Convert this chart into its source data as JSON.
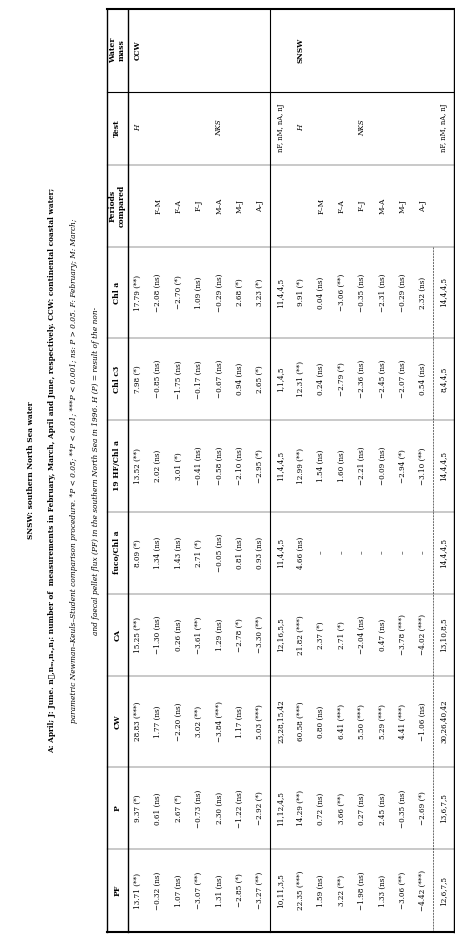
{
  "title_lines": [
    "and faecal pellet flux (PF) in the southern North Sea in 1996. H (P) = result of the non-",
    "parametric Newman–Keuls–Student comparison procedure. *P < 0.05; **P < 0.01; ***P < 0.001; ns: P > 0.05. F: February; M: March;",
    "A: April; J: June. n₟,nₘ,nₐ,nⱼ: number of  measurements in February, March, April and June, respectively. CCW: continental coastal water;",
    "SNSW: southern North Sea water"
  ],
  "col_headers": [
    "Water\nmass",
    "Test",
    "Periods\ncompared",
    "Chl a",
    "Chl c3",
    "19 HF/Chl a",
    "fuco/Chl a",
    "CA",
    "CW",
    "P",
    "PF"
  ],
  "rows": [
    [
      "CCW",
      "H",
      "",
      "17.79 (**)",
      "7.98 (*)",
      "13.52 (**)",
      "8.09 (*)",
      "15.25 (**)",
      "28.83 (***)",
      "9.37 (*)",
      "13.71 (**)"
    ],
    [
      "",
      "",
      "F–M",
      "−2.08 (ns)",
      "−0.85 (ns)",
      "2.02 (ns)",
      "1.34 (ns)",
      "−1.30 (ns)",
      "1.77 (ns)",
      "0.61 (ns)",
      "−0.32 (ns)"
    ],
    [
      "",
      "",
      "F–A",
      "−2.70 (*)",
      "−1.75 (ns)",
      "3.01 (*)",
      "1.43 (ns)",
      "0.26 (ns)",
      "−2.20 (ns)",
      "2.67 (*)",
      "1.07 (ns)"
    ],
    [
      "",
      "",
      "F–J",
      "1.09 (ns)",
      "−0.17 (ns)",
      "−0.41 (ns)",
      "2.71 (*)",
      "−3.61 (**)",
      "3.02 (**)",
      "−0.73 (ns)",
      "−3.07 (**)"
    ],
    [
      "",
      "NKS",
      "M–A",
      "−0.29 (ns)",
      "−0.67 (ns)",
      "−0.58 (ns)",
      "−0.05 (ns)",
      "1.29 (ns)",
      "−3.84 (***)",
      "2.30 (ns)",
      "1.31 (ns)"
    ],
    [
      "",
      "",
      "M–J",
      "2.68 (*)",
      "0.94 (ns)",
      "−2.10 (ns)",
      "0.81 (ns)",
      "−2.78 (*)",
      "1.17 (ns)",
      "−1.22 (ns)",
      "−2.85 (*)"
    ],
    [
      "",
      "",
      "A–J",
      "3.23 (*)",
      "2.65 (*)",
      "−2.95 (*)",
      "0.93 (ns)",
      "−3.30 (**)",
      "5.03 (***)",
      "−2.92 (*)",
      "−3.27 (**)"
    ],
    [
      "",
      "nF, nM, nA, nJ",
      "",
      "11,4,4,5",
      "1,1,4,5",
      "11,4,4,5",
      "11,4,4,5",
      "12,16,5,5",
      "23,28,15,42",
      "11,12,4,5",
      "10,11,3,5"
    ],
    [
      "SNSW",
      "H",
      "",
      "9.91 (*)",
      "12.31 (**)",
      "12.99 (**)",
      "4.66 (ns)",
      "21.82 (***)",
      "60.58 (***)",
      "14.29 (**)",
      "22.35 (***)"
    ],
    [
      "",
      "",
      "F–M",
      "0.04 (ns)",
      "0.24 (ns)",
      "1.54 (ns)",
      "–",
      "2.37 (*)",
      "0.80 (ns)",
      "0.72 (ns)",
      "1.59 (ns)"
    ],
    [
      "",
      "",
      "F–A",
      "−3.06 (**)",
      "−2.79 (*)",
      "1.60 (ns)",
      "–",
      "2.71 (*)",
      "6.41 (***)",
      "3.66 (**)",
      "3.22 (**)"
    ],
    [
      "",
      "NKS",
      "F–J",
      "−0.35 (ns)",
      "−2.36 (ns)",
      "−2.21 (ns)",
      "–",
      "−2.04 (ns)",
      "5.50 (***)",
      "0.27 (ns)",
      "−1.98 (ns)"
    ],
    [
      "",
      "",
      "M–A",
      "−2.31 (ns)",
      "−2.45 (ns)",
      "−0.09 (ns)",
      "–",
      "0.47 (ns)",
      "5.29 (***)",
      "2.45 (ns)",
      "1.33 (ns)"
    ],
    [
      "",
      "",
      "M–J",
      "−0.29 (ns)",
      "−2.07 (ns)",
      "−2.94 (*)",
      "–",
      "−3.78 (***)",
      "4.41 (***)",
      "−0.35 (ns)",
      "−3.06 (**)"
    ],
    [
      "",
      "",
      "A–J",
      "2.32 (ns)",
      "0.54 (ns)",
      "−3.10 (**)",
      "–",
      "−4.02 (***)",
      "−1.06 (ns)",
      "−2.69 (*)",
      "−4.42 (***)"
    ],
    [
      "",
      "nF, nM, nA, nJ",
      "",
      "14,4,4,5",
      "8,4,4,5",
      "14,4,4,5",
      "14,4,4,5",
      "13,10,8,5",
      "30,26,40,42",
      "13,6,7,5",
      "12,6,7,5"
    ]
  ],
  "fig_width": 4.56,
  "fig_height": 9.41,
  "font_size": 5.2,
  "title_font_size": 5.3
}
